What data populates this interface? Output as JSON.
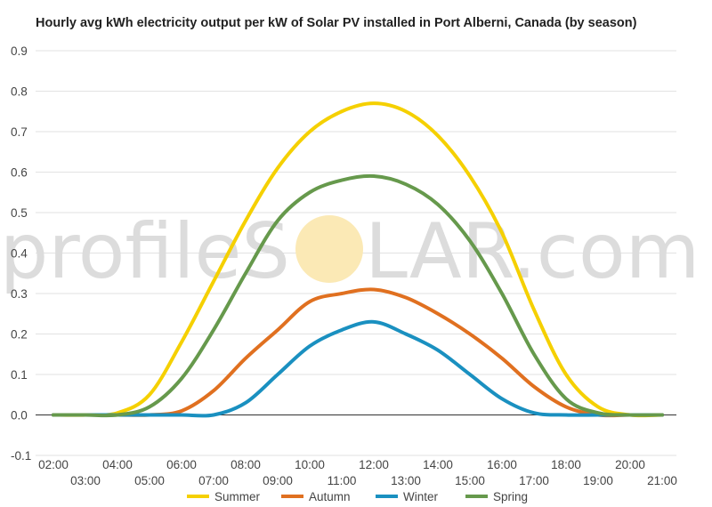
{
  "chart_data": {
    "type": "line",
    "title": "Hourly avg kWh electricity output per kW of Solar PV installed in Port Alberni, Canada (by season)",
    "xlabel": "",
    "ylabel": "",
    "ylim": [
      -0.1,
      0.9
    ],
    "yticks": [
      "-0.1",
      "0.0",
      "0.1",
      "0.2",
      "0.3",
      "0.4",
      "0.5",
      "0.6",
      "0.7",
      "0.8",
      "0.9"
    ],
    "grid": true,
    "legend_position": "bottom",
    "x": [
      "02:00",
      "03:00",
      "04:00",
      "05:00",
      "06:00",
      "07:00",
      "08:00",
      "09:00",
      "10:00",
      "11:00",
      "12:00",
      "13:00",
      "14:00",
      "15:00",
      "16:00",
      "17:00",
      "18:00",
      "19:00",
      "20:00",
      "21:00"
    ],
    "series": [
      {
        "name": "Summer",
        "color": "#F5D000",
        "values": [
          0.0,
          0.0,
          0.005,
          0.05,
          0.18,
          0.33,
          0.48,
          0.61,
          0.7,
          0.75,
          0.77,
          0.75,
          0.69,
          0.59,
          0.45,
          0.26,
          0.1,
          0.02,
          0.0,
          0.0
        ]
      },
      {
        "name": "Autumn",
        "color": "#E07020",
        "values": [
          0.0,
          0.0,
          0.0,
          0.0,
          0.01,
          0.06,
          0.14,
          0.21,
          0.28,
          0.3,
          0.31,
          0.29,
          0.25,
          0.2,
          0.14,
          0.07,
          0.02,
          0.0,
          0.0,
          0.0
        ]
      },
      {
        "name": "Winter",
        "color": "#1A90C0",
        "values": [
          0.0,
          0.0,
          0.0,
          0.0,
          0.0,
          0.0,
          0.03,
          0.1,
          0.17,
          0.21,
          0.23,
          0.2,
          0.16,
          0.1,
          0.04,
          0.005,
          0.0,
          0.0,
          0.0,
          0.0
        ]
      },
      {
        "name": "Spring",
        "color": "#66994C",
        "values": [
          0.0,
          0.0,
          0.0,
          0.02,
          0.09,
          0.21,
          0.35,
          0.48,
          0.55,
          0.58,
          0.59,
          0.57,
          0.52,
          0.43,
          0.3,
          0.15,
          0.04,
          0.005,
          0.0,
          0.0
        ]
      }
    ]
  },
  "watermark": {
    "text_left": "profileS",
    "text_right": "LAR.com",
    "sun_color": "#FBE9B5"
  }
}
